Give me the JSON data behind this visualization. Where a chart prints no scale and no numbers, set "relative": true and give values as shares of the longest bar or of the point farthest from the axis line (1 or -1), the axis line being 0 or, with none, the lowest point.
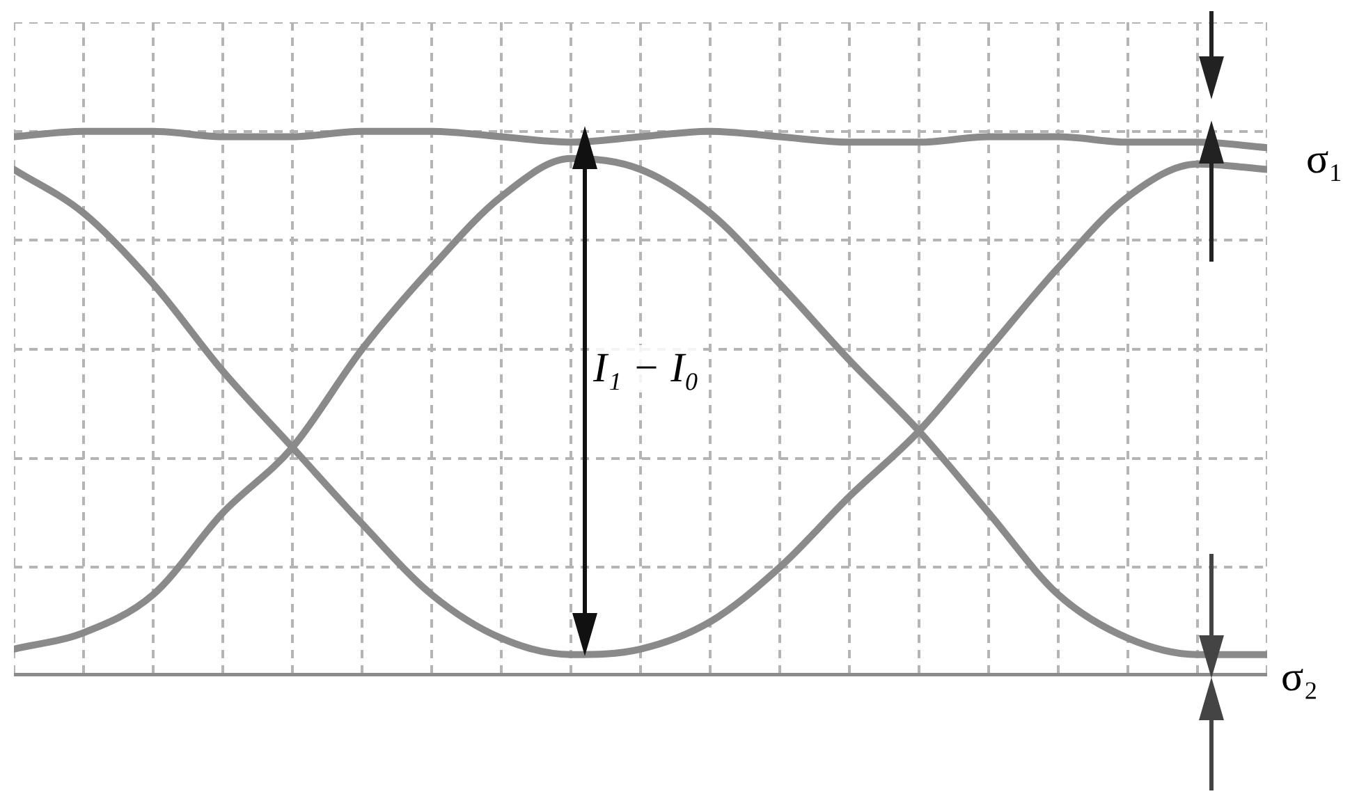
{
  "chart_data": {
    "type": "line",
    "relative": true,
    "grid": true,
    "legend": false,
    "marker": "none",
    "line_style": "solid",
    "categories": [
      null,
      null,
      null,
      null,
      null,
      null,
      null,
      null,
      null,
      null,
      null,
      null,
      null,
      null,
      null,
      null,
      null,
      null,
      null
    ],
    "series": [
      {
        "color": "#8a8a8a",
        "values": [
          0.99,
          1,
          1,
          0.99,
          0.99,
          1,
          1,
          0.99,
          0.98,
          0.99,
          1,
          0.99,
          0.98,
          0.98,
          0.99,
          0.99,
          0.98,
          0.98,
          0.97
        ]
      },
      {
        "color": "#8a8a8a",
        "values": [
          0.05,
          0.08,
          0.15,
          0.3,
          0.42,
          0.6,
          0.75,
          0.88,
          0.95,
          0.93,
          0.85,
          0.72,
          0.58,
          0.45,
          0.3,
          0.15,
          0.07,
          0.04,
          0.04
        ]
      },
      {
        "color": "#8a8a8a",
        "values": [
          0.93,
          0.85,
          0.72,
          0.56,
          0.42,
          0.28,
          0.15,
          0.07,
          0.04,
          0.05,
          0.1,
          0.2,
          0.33,
          0.45,
          0.6,
          0.75,
          0.88,
          0.94,
          0.93
        ]
      },
      {
        "color": "#8a8a8a",
        "values": [
          0,
          0,
          0,
          0,
          0,
          0,
          0,
          0,
          0,
          0,
          0,
          0,
          0,
          0,
          0,
          0,
          0,
          0,
          0
        ]
      }
    ],
    "annotations": [
      "I₁ − I₀",
      "σ₁",
      "σ₂"
    ]
  }
}
